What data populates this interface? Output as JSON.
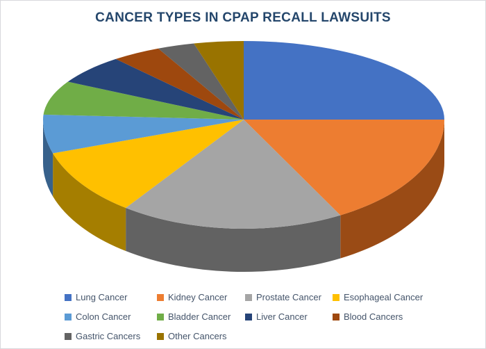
{
  "colors": {
    "title_text": "#24466B",
    "legend_text": "#44546A",
    "background": "#FFFFFF",
    "frame_border": "#D8D8DC"
  },
  "chart_data": {
    "type": "pie",
    "effect": "3d",
    "title": "CANCER TYPES IN CPAP RECALL LAWSUITS",
    "legend_position": "bottom",
    "data_labels": "none",
    "start_angle_deg": 0,
    "direction": "clockwise",
    "note": "No numeric labels shown in chart; percentages estimated from slice angles",
    "slices": [
      {
        "label": "Lung Cancer",
        "value_pct": 25,
        "color": "#4472C4",
        "side_color": "#2A477A"
      },
      {
        "label": "Kidney Cancer",
        "value_pct": 17,
        "color": "#ED7D31",
        "side_color": "#9A4B15"
      },
      {
        "label": "Prostate Cancer",
        "value_pct": 18,
        "color": "#A5A5A5",
        "side_color": "#626262"
      },
      {
        "label": "Esophageal Cancer",
        "value_pct": 10,
        "color": "#FFC000",
        "side_color": "#A57E00"
      },
      {
        "label": "Colon Cancer",
        "value_pct": 6,
        "color": "#5B9BD5",
        "side_color": "#37618B"
      },
      {
        "label": "Bladder Cancer",
        "value_pct": 7,
        "color": "#70AD47",
        "side_color": "#456B2C"
      },
      {
        "label": "Liver Cancer",
        "value_pct": 6,
        "color": "#264478",
        "side_color": "#17294A"
      },
      {
        "label": "Blood Cancers",
        "value_pct": 4,
        "color": "#9E480E",
        "side_color": "#5F2B08"
      },
      {
        "label": "Gastric Cancers",
        "value_pct": 3,
        "color": "#636363",
        "side_color": "#3B3B3B"
      },
      {
        "label": "Other Cancers",
        "value_pct": 4,
        "color": "#997300",
        "side_color": "#5C4500"
      }
    ]
  }
}
